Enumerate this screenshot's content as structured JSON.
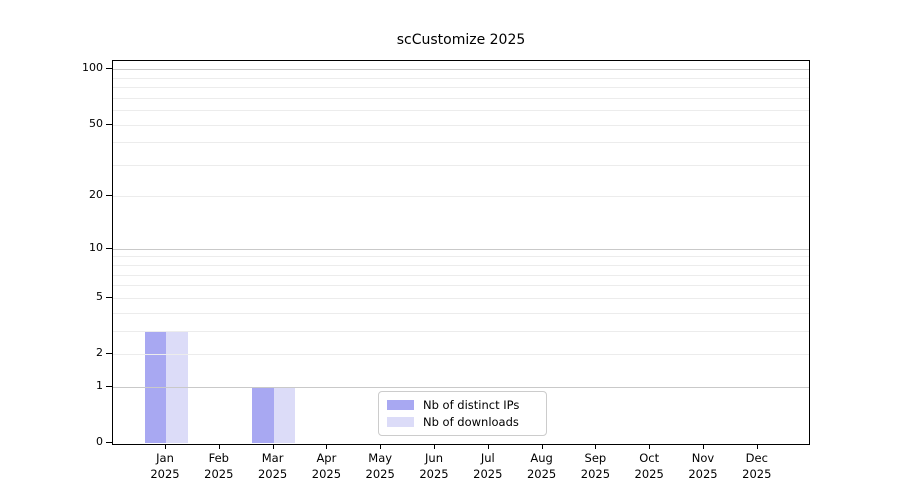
{
  "chart_data": {
    "type": "bar",
    "title": "scCustomize 2025",
    "year": "2025",
    "categories": [
      "Jan",
      "Feb",
      "Mar",
      "Apr",
      "May",
      "Jun",
      "Jul",
      "Aug",
      "Sep",
      "Oct",
      "Nov",
      "Dec"
    ],
    "series": [
      {
        "name": "Nb of distinct IPs",
        "color": "#a8a8f2",
        "values": [
          3,
          0,
          1,
          0,
          0,
          0,
          0,
          0,
          0,
          0,
          0,
          0
        ]
      },
      {
        "name": "Nb of downloads",
        "color": "#dcdcf8",
        "values": [
          3,
          0,
          1,
          0,
          0,
          0,
          0,
          0,
          0,
          0,
          0,
          0
        ]
      }
    ],
    "y_axis": {
      "scale": "log1p",
      "tick_values": [
        0,
        1,
        2,
        5,
        10,
        20,
        50,
        100
      ],
      "tick_labels": [
        "0",
        "1",
        "2",
        "5",
        "10",
        "20",
        "50",
        "100"
      ],
      "major_gridlines": [
        1,
        10,
        100
      ],
      "minor_gridlines": [
        2,
        3,
        4,
        5,
        6,
        7,
        8,
        9,
        20,
        30,
        40,
        50,
        60,
        70,
        80,
        90
      ],
      "range": [
        0,
        110
      ]
    },
    "xlabel": "",
    "ylabel": "",
    "grid": "on",
    "legend_position": "lower center",
    "colors": {
      "major_grid": "#c9c9c9",
      "minor_grid": "#ececec",
      "spine": "#000000",
      "legend_border": "#cccccc",
      "background": "#ffffff"
    }
  }
}
